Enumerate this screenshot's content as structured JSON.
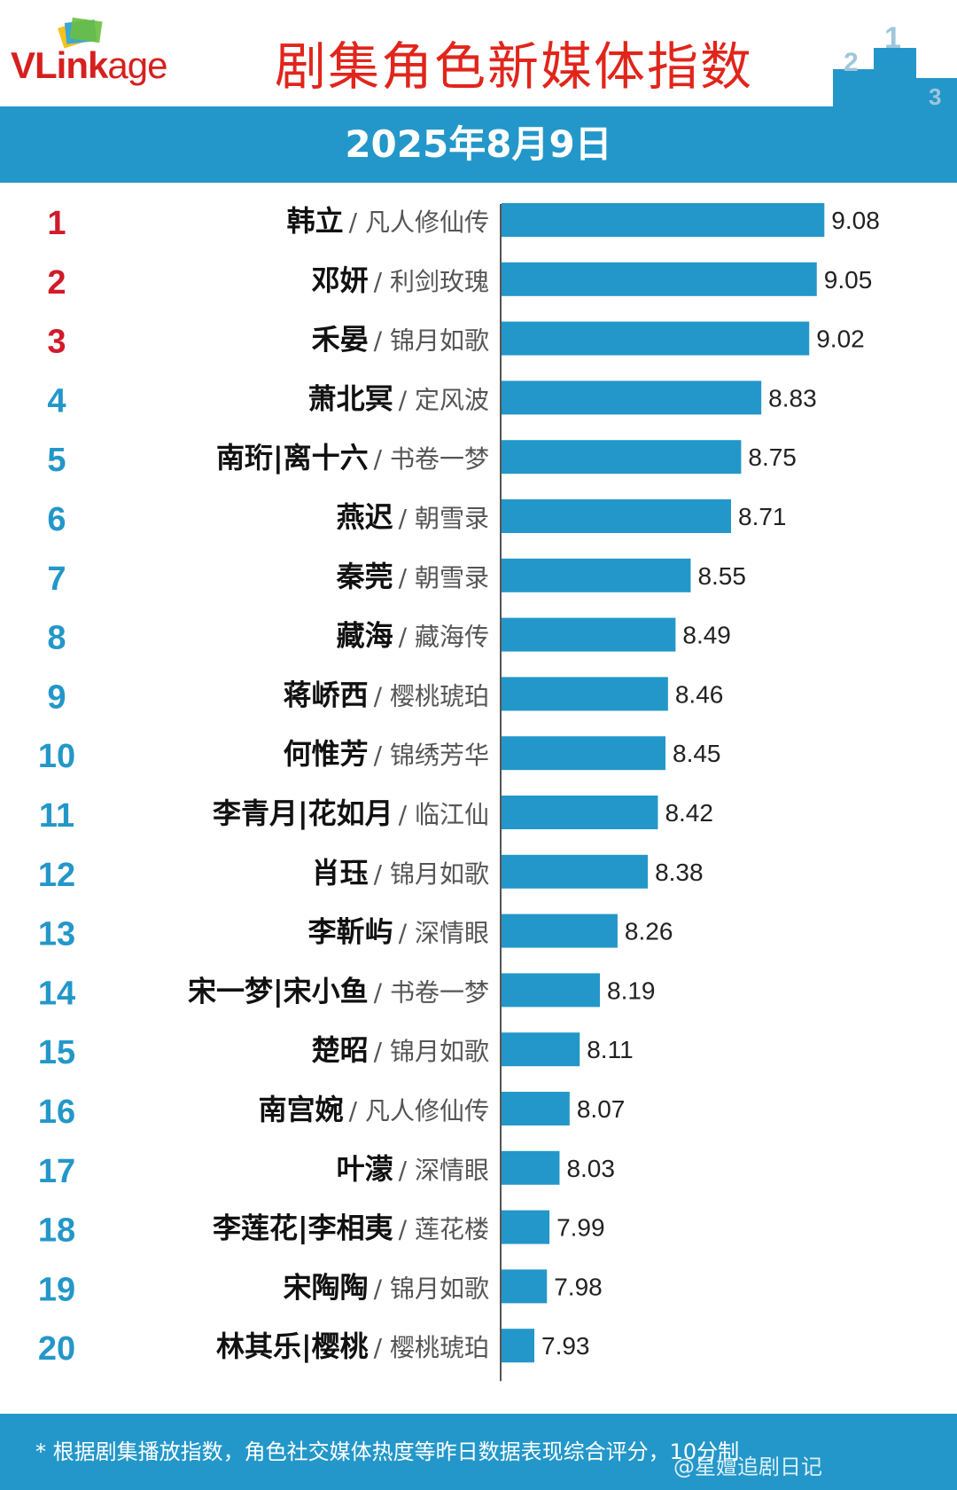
{
  "header": {
    "logo": {
      "prefix": "VLink",
      "suffix": "age"
    },
    "title": "剧集角色新媒体指数",
    "date": "2025年8月9日"
  },
  "colors": {
    "bar": "#2397c9",
    "rank_top": "#d11a2a",
    "rank_other": "#2397c9",
    "title": "#e1251b",
    "banner": "#2397c9"
  },
  "footer": {
    "note": "* 根据剧集播放指数，角色社交媒体热度等昨日数据表现综合评分，10分制",
    "watermark": "@星嬗追剧日记"
  },
  "chart_data": {
    "type": "bar",
    "orientation": "horizontal",
    "xlim": [
      7.8,
      9.1
    ],
    "grid": false,
    "rows": [
      {
        "rank": "1",
        "character": "韩立",
        "drama": "凡人修仙传",
        "value": 9.08
      },
      {
        "rank": "2",
        "character": "邓妍",
        "drama": "利剑玫瑰",
        "value": 9.05
      },
      {
        "rank": "3",
        "character": "禾晏",
        "drama": "锦月如歌",
        "value": 9.02
      },
      {
        "rank": "4",
        "character": "萧北冥",
        "drama": "定风波",
        "value": 8.83
      },
      {
        "rank": "5",
        "character": "南珩|离十六",
        "drama": "书卷一梦",
        "value": 8.75
      },
      {
        "rank": "6",
        "character": "燕迟",
        "drama": "朝雪录",
        "value": 8.71
      },
      {
        "rank": "7",
        "character": "秦莞",
        "drama": "朝雪录",
        "value": 8.55
      },
      {
        "rank": "8",
        "character": "藏海",
        "drama": "藏海传",
        "value": 8.49
      },
      {
        "rank": "9",
        "character": "蒋峤西",
        "drama": "樱桃琥珀",
        "value": 8.46
      },
      {
        "rank": "10",
        "character": "何惟芳",
        "drama": "锦绣芳华",
        "value": 8.45
      },
      {
        "rank": "11",
        "character": "李青月|花如月",
        "drama": "临江仙",
        "value": 8.42
      },
      {
        "rank": "12",
        "character": "肖珏",
        "drama": "锦月如歌",
        "value": 8.38
      },
      {
        "rank": "13",
        "character": "李靳屿",
        "drama": "深情眼",
        "value": 8.26
      },
      {
        "rank": "14",
        "character": "宋一梦|宋小鱼",
        "drama": "书卷一梦",
        "value": 8.19
      },
      {
        "rank": "15",
        "character": "楚昭",
        "drama": "锦月如歌",
        "value": 8.11
      },
      {
        "rank": "16",
        "character": "南宫婉",
        "drama": "凡人修仙传",
        "value": 8.07
      },
      {
        "rank": "17",
        "character": "叶濛",
        "drama": "深情眼",
        "value": 8.03
      },
      {
        "rank": "18",
        "character": "李莲花|李相夷",
        "drama": "莲花楼",
        "value": 7.99
      },
      {
        "rank": "19",
        "character": "宋陶陶",
        "drama": "锦月如歌",
        "value": 7.98
      },
      {
        "rank": "20",
        "character": "林其乐|樱桃",
        "drama": "樱桃琥珀",
        "value": 7.93
      }
    ]
  }
}
